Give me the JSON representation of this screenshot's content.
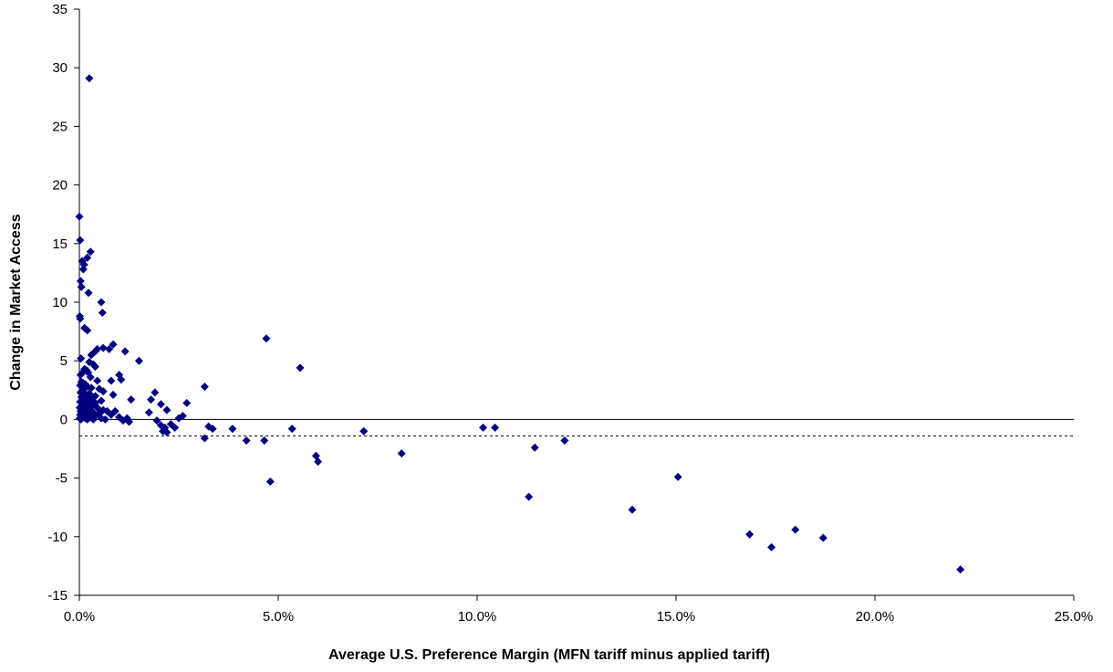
{
  "chart_data": {
    "type": "scatter",
    "title": "",
    "xlabel": "Average U.S. Preference Margin (MFN tariff minus applied tariff)",
    "ylabel": "Change in Market Access",
    "xlim": [
      0,
      0.25
    ],
    "ylim": [
      -15,
      35
    ],
    "x_ticks": [
      0,
      0.05,
      0.1,
      0.15,
      0.2,
      0.25
    ],
    "x_tick_labels": [
      "0.0%",
      "5.0%",
      "10.0%",
      "15.0%",
      "20.0%",
      "25.0%"
    ],
    "y_ticks": [
      -15,
      -10,
      -5,
      0,
      5,
      10,
      15,
      20,
      25,
      30,
      35
    ],
    "y_tick_labels": [
      "-15",
      "-10",
      "-5",
      "0",
      "5",
      "10",
      "15",
      "20",
      "25",
      "30",
      "35"
    ],
    "reference_line": {
      "y": -1.4,
      "style": "dashed"
    },
    "marker_color": "#000080",
    "grid": false,
    "legend": "none",
    "series": [
      {
        "points": [
          [
            0.0025,
            29.1
          ],
          [
            0.0,
            17.3
          ],
          [
            0.0002,
            15.3
          ],
          [
            0.0028,
            14.3
          ],
          [
            0.002,
            13.8
          ],
          [
            0.0007,
            13.5
          ],
          [
            0.0012,
            13.2
          ],
          [
            0.001,
            12.8
          ],
          [
            0.0003,
            11.8
          ],
          [
            0.0005,
            11.3
          ],
          [
            0.0023,
            10.8
          ],
          [
            0.0055,
            10.0
          ],
          [
            0.0058,
            9.1
          ],
          [
            0.0001,
            8.8
          ],
          [
            0.0002,
            8.6
          ],
          [
            0.0013,
            7.8
          ],
          [
            0.002,
            7.6
          ],
          [
            0.0085,
            6.4
          ],
          [
            0.006,
            6.1
          ],
          [
            0.0045,
            6.0
          ],
          [
            0.0075,
            6.0
          ],
          [
            0.004,
            5.8
          ],
          [
            0.0115,
            5.8
          ],
          [
            0.003,
            5.5
          ],
          [
            0.0004,
            5.2
          ],
          [
            0.015,
            5.0
          ],
          [
            0.0025,
            4.9
          ],
          [
            0.0035,
            4.7
          ],
          [
            0.004,
            4.5
          ],
          [
            0.0013,
            4.3
          ],
          [
            0.0018,
            4.2
          ],
          [
            0.0008,
            4.0
          ],
          [
            0.0022,
            4.0
          ],
          [
            0.0003,
            3.8
          ],
          [
            0.01,
            3.8
          ],
          [
            0.0028,
            3.6
          ],
          [
            0.0105,
            3.4
          ],
          [
            0.0045,
            3.3
          ],
          [
            0.008,
            3.3
          ],
          [
            0.0005,
            3.2
          ],
          [
            0.001,
            3.1
          ],
          [
            0.0015,
            3.0
          ],
          [
            0.0002,
            2.9
          ],
          [
            0.002,
            2.8
          ],
          [
            0.003,
            2.7
          ],
          [
            0.005,
            2.6
          ],
          [
            0.0008,
            2.5
          ],
          [
            0.006,
            2.4
          ],
          [
            0.0003,
            2.3
          ],
          [
            0.0012,
            2.3
          ],
          [
            0.019,
            2.3
          ],
          [
            0.0025,
            2.2
          ],
          [
            0.0085,
            2.1
          ],
          [
            0.004,
            2.0
          ],
          [
            0.0005,
            1.9
          ],
          [
            0.0018,
            1.8
          ],
          [
            0.003,
            1.7
          ],
          [
            0.013,
            1.7
          ],
          [
            0.018,
            1.7
          ],
          [
            0.001,
            1.6
          ],
          [
            0.0055,
            1.6
          ],
          [
            0.0002,
            1.5
          ],
          [
            0.0022,
            1.5
          ],
          [
            0.004,
            1.4
          ],
          [
            0.027,
            1.4
          ],
          [
            0.0008,
            1.3
          ],
          [
            0.0205,
            1.3
          ],
          [
            0.0015,
            1.2
          ],
          [
            0.003,
            1.1
          ],
          [
            0.0001,
            1.0
          ],
          [
            0.0045,
            1.0
          ],
          [
            0.002,
            0.9
          ],
          [
            0.001,
            0.8
          ],
          [
            0.006,
            0.8
          ],
          [
            0.022,
            0.8
          ],
          [
            0.0003,
            0.7
          ],
          [
            0.0025,
            0.7
          ],
          [
            0.007,
            0.7
          ],
          [
            0.009,
            0.7
          ],
          [
            0.0006,
            0.6
          ],
          [
            0.0035,
            0.6
          ],
          [
            0.0175,
            0.6
          ],
          [
            0.0012,
            0.5
          ],
          [
            0.005,
            0.5
          ],
          [
            0.0002,
            0.4
          ],
          [
            0.008,
            0.4
          ],
          [
            0.0018,
            0.3
          ],
          [
            0.004,
            0.3
          ],
          [
            0.026,
            0.3
          ],
          [
            0.0008,
            0.2
          ],
          [
            0.0028,
            0.2
          ],
          [
            0.01,
            0.2
          ],
          [
            0.025,
            0.1
          ],
          [
            0.0001,
            0.1
          ],
          [
            0.0015,
            0.1
          ],
          [
            0.0055,
            0.1
          ],
          [
            0.012,
            0.1
          ],
          [
            0.0004,
            0.0
          ],
          [
            0.002,
            0.0
          ],
          [
            0.0035,
            0.0
          ],
          [
            0.0065,
            0.0
          ],
          [
            0.011,
            -0.1
          ],
          [
            0.0195,
            -0.1
          ],
          [
            0.0125,
            -0.2
          ],
          [
            0.023,
            -0.4
          ],
          [
            0.0205,
            -0.5
          ],
          [
            0.0325,
            -0.6
          ],
          [
            0.0215,
            -0.7
          ],
          [
            0.024,
            -0.7
          ],
          [
            0.0335,
            -0.8
          ],
          [
            0.0385,
            -0.8
          ],
          [
            0.0535,
            -0.8
          ],
          [
            0.021,
            -1.0
          ],
          [
            0.022,
            -1.1
          ],
          [
            0.0715,
            -1.0
          ],
          [
            0.1015,
            -0.7
          ],
          [
            0.1045,
            -0.7
          ],
          [
            0.0315,
            -1.6
          ],
          [
            0.042,
            -1.8
          ],
          [
            0.0465,
            -1.8
          ],
          [
            0.122,
            -1.8
          ],
          [
            0.1145,
            -2.4
          ],
          [
            0.081,
            -2.9
          ],
          [
            0.0595,
            -3.1
          ],
          [
            0.06,
            -3.6
          ],
          [
            0.048,
            -5.3
          ],
          [
            0.1505,
            -4.9
          ],
          [
            0.113,
            -6.6
          ],
          [
            0.139,
            -7.7
          ],
          [
            0.1685,
            -9.8
          ],
          [
            0.18,
            -9.4
          ],
          [
            0.187,
            -10.1
          ],
          [
            0.174,
            -10.9
          ],
          [
            0.2215,
            -12.8
          ],
          [
            0.047,
            6.9
          ],
          [
            0.0555,
            4.4
          ],
          [
            0.0315,
            2.8
          ]
        ]
      }
    ]
  }
}
